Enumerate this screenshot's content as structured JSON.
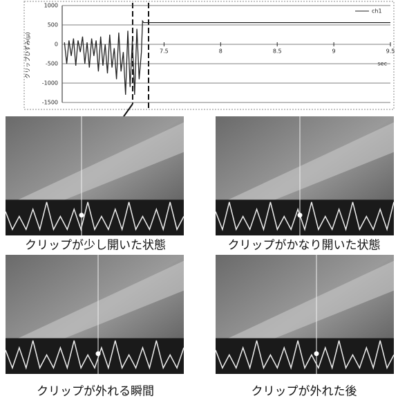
{
  "chart_data": {
    "type": "line",
    "y_label": "クリップひずみ(μ)",
    "x_unit": "sec",
    "x": [
      6.62,
      6.64,
      6.66,
      6.68,
      6.7,
      6.72,
      6.74,
      6.76,
      6.78,
      6.8,
      6.82,
      6.84,
      6.86,
      6.88,
      6.9,
      6.92,
      6.94,
      6.96,
      6.98,
      7.0,
      7.02,
      7.04,
      7.06,
      7.08,
      7.1,
      7.12,
      7.14,
      7.16,
      7.18,
      7.2,
      7.22,
      7.24,
      7.26,
      7.28,
      7.3,
      7.31,
      7.32,
      9.5
    ],
    "series": [
      {
        "name": "ch1",
        "color": "#222222",
        "values": [
          50,
          -500,
          100,
          -300,
          150,
          -550,
          100,
          -200,
          200,
          -500,
          50,
          -600,
          150,
          -300,
          100,
          -700,
          200,
          -550,
          0,
          -750,
          250,
          -600,
          -100,
          -900,
          300,
          -700,
          -200,
          -1300,
          350,
          -1100,
          100,
          -1300,
          400,
          -900,
          -200,
          600,
          560,
          560
        ]
      }
    ],
    "xlim": [
      6.6,
      9.5
    ],
    "xticks": [
      7.5,
      8,
      8.5,
      9,
      9.5
    ],
    "ylim": [
      -1500,
      1000
    ],
    "yticks": [
      1000,
      500,
      0,
      -500,
      -1000,
      -1500
    ],
    "grid": true
  },
  "panels": [
    {
      "caption": "クリップが少し開いた状態"
    },
    {
      "caption": "クリップがかなり開いた状態"
    },
    {
      "caption": "クリップが外れる瞬間"
    },
    {
      "caption": "クリップが外れた後"
    }
  ]
}
